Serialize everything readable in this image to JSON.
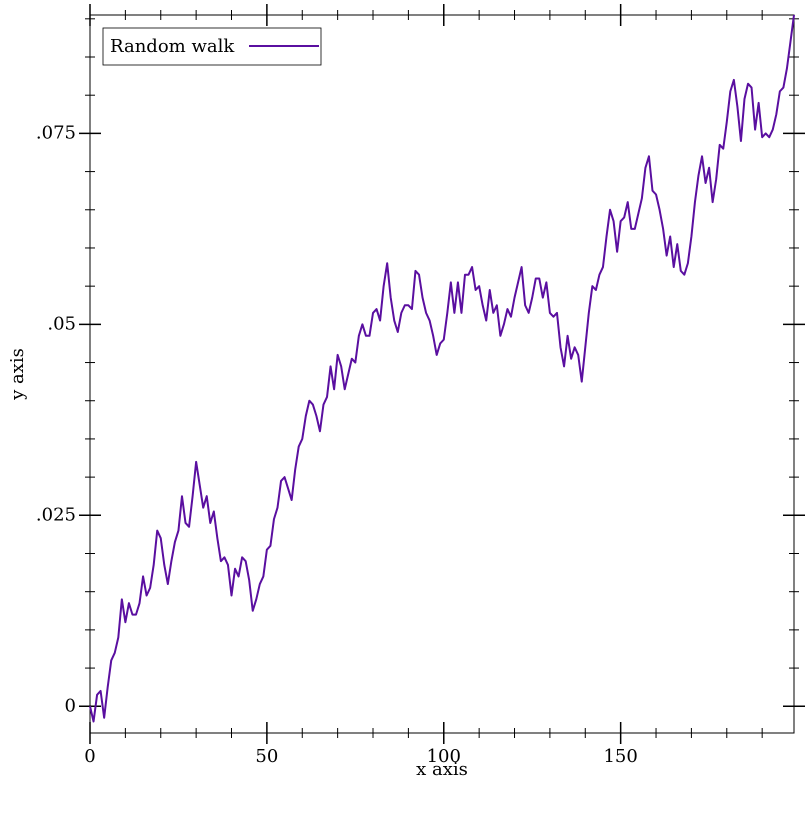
{
  "chart_data": {
    "type": "line",
    "title": "",
    "xlabel": "x axis",
    "ylabel": "y axis",
    "xlim": [
      0,
      199
    ],
    "ylim": [
      -0.0035,
      0.0905
    ],
    "grid": false,
    "legend_position": "top-left",
    "x_ticks": [
      {
        "value": 0,
        "label": "0"
      },
      {
        "value": 50,
        "label": "50"
      },
      {
        "value": 100,
        "label": "100"
      },
      {
        "value": 150,
        "label": "150"
      }
    ],
    "y_ticks": [
      {
        "value": 0,
        "label": "0"
      },
      {
        "value": 0.025,
        "label": ".025"
      },
      {
        "value": 0.05,
        "label": ".05"
      },
      {
        "value": 0.075,
        "label": ".075"
      }
    ],
    "series": [
      {
        "name": "Random walk",
        "color": "#5a0fa0",
        "x_start": 0,
        "x_step": 1,
        "values": [
          0.0,
          -0.002,
          0.0015,
          0.002,
          -0.0015,
          0.0025,
          0.006,
          0.007,
          0.009,
          0.014,
          0.011,
          0.0135,
          0.012,
          0.012,
          0.0135,
          0.017,
          0.0145,
          0.0155,
          0.0185,
          0.023,
          0.022,
          0.0185,
          0.016,
          0.019,
          0.0215,
          0.023,
          0.0275,
          0.024,
          0.0235,
          0.0275,
          0.032,
          0.029,
          0.026,
          0.0275,
          0.024,
          0.0255,
          0.022,
          0.019,
          0.0195,
          0.0185,
          0.0145,
          0.018,
          0.017,
          0.0195,
          0.019,
          0.0165,
          0.0125,
          0.014,
          0.016,
          0.017,
          0.0205,
          0.021,
          0.0245,
          0.026,
          0.0295,
          0.03,
          0.0285,
          0.027,
          0.031,
          0.034,
          0.035,
          0.038,
          0.04,
          0.0395,
          0.038,
          0.036,
          0.0395,
          0.0405,
          0.0445,
          0.0415,
          0.046,
          0.0445,
          0.0415,
          0.0435,
          0.0455,
          0.045,
          0.0485,
          0.05,
          0.0485,
          0.0485,
          0.0515,
          0.052,
          0.0505,
          0.055,
          0.058,
          0.0535,
          0.0505,
          0.049,
          0.0515,
          0.0525,
          0.0525,
          0.052,
          0.057,
          0.0565,
          0.0535,
          0.0515,
          0.0505,
          0.0485,
          0.046,
          0.0475,
          0.048,
          0.0515,
          0.0555,
          0.0515,
          0.0555,
          0.0515,
          0.0565,
          0.0565,
          0.0575,
          0.0545,
          0.055,
          0.0525,
          0.0505,
          0.0545,
          0.0515,
          0.0525,
          0.0485,
          0.05,
          0.052,
          0.051,
          0.0535,
          0.0555,
          0.0575,
          0.0525,
          0.0515,
          0.0535,
          0.056,
          0.056,
          0.0535,
          0.0555,
          0.0515,
          0.051,
          0.0515,
          0.047,
          0.0445,
          0.0485,
          0.0455,
          0.047,
          0.046,
          0.0425,
          0.047,
          0.0515,
          0.055,
          0.0545,
          0.0565,
          0.0575,
          0.0615,
          0.065,
          0.0635,
          0.0595,
          0.0635,
          0.064,
          0.066,
          0.0625,
          0.0625,
          0.0645,
          0.0665,
          0.0705,
          0.072,
          0.0675,
          0.067,
          0.065,
          0.0625,
          0.059,
          0.0615,
          0.0575,
          0.0605,
          0.057,
          0.0565,
          0.058,
          0.0615,
          0.066,
          0.0695,
          0.072,
          0.0685,
          0.0705,
          0.066,
          0.069,
          0.0735,
          0.073,
          0.0765,
          0.0805,
          0.082,
          0.0785,
          0.074,
          0.0795,
          0.0815,
          0.081,
          0.0755,
          0.079,
          0.0745,
          0.075,
          0.0745,
          0.0755,
          0.0775,
          0.0805,
          0.081,
          0.0835,
          0.087,
          0.0905
        ]
      }
    ]
  }
}
